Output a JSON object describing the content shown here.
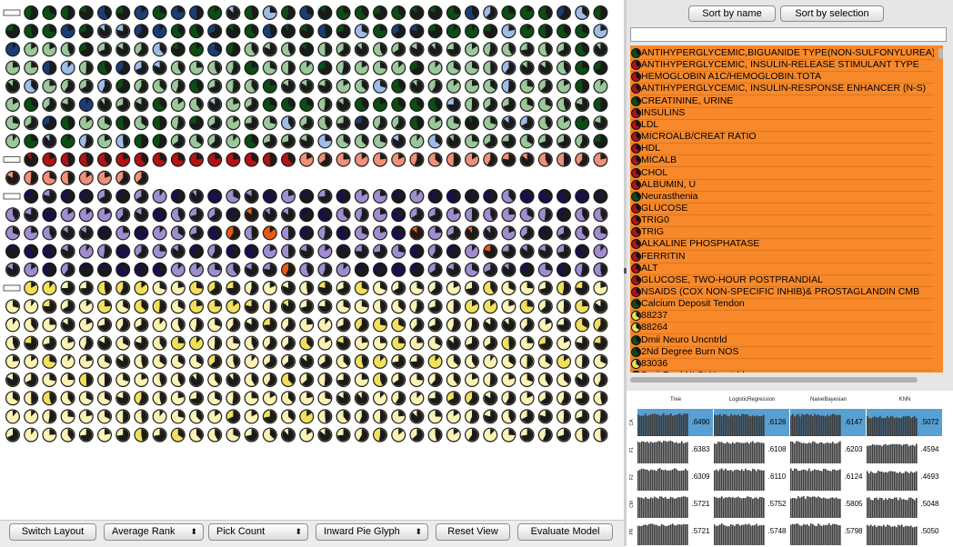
{
  "colors": {
    "green_dark": "#0c4d14",
    "green_light": "#9bc79a",
    "blue_dark": "#1b3d75",
    "blue_light": "#9fbce6",
    "red_dark": "#b01414",
    "red_light": "#ef9079",
    "purple_dark": "#1c0e4b",
    "purple_light": "#9f8dcf",
    "orange": "#e85a10",
    "yellow_dark": "#f1e05c",
    "yellow_light": "#fbf2b5",
    "list_bg": "#f7892b",
    "highlight": "#58a0d1"
  },
  "groups": [
    {
      "palette": "green",
      "has_label": true,
      "label": "",
      "rows": 8,
      "last_row_count": 33
    },
    {
      "palette": "red",
      "has_label": true,
      "label": "",
      "rows": 2,
      "last_row_count": 8
    },
    {
      "palette": "purple",
      "has_label": true,
      "label": "",
      "rows": 5,
      "last_row_count": 33
    },
    {
      "palette": "yellow",
      "has_label": true,
      "label": "",
      "rows": 9,
      "last_row_count": 33
    }
  ],
  "toolbar": {
    "switch_layout": "Switch Layout",
    "rank_select": "Average Rank",
    "count_select": "Pick Count",
    "glyph_select": "Inward Pie Glyph",
    "reset_view": "Reset View",
    "evaluate_model": "Evaluate Model"
  },
  "right_panel": {
    "sort_by_name": "Sort by name",
    "sort_by_selection": "Sort by selection",
    "filter_value": ""
  },
  "list_items": [
    {
      "label": "ANTIHYPERGLYCEMIC,BIGUANIDE TYPE(NON-SULFONYLUREA)",
      "icon": "green"
    },
    {
      "label": "ANTIHYPERGLYCEMIC, INSULIN-RELEASE STIMULANT TYPE",
      "icon": "red"
    },
    {
      "label": "HEMOGLOBIN A1C/HEMOGLOBIN.TOTA",
      "icon": "red"
    },
    {
      "label": "ANTIHYPERGLYCEMIC, INSULIN-RESPONSE ENHANCER (N-S)",
      "icon": "red"
    },
    {
      "label": "CREATININE, URINE",
      "icon": "green"
    },
    {
      "label": "INSULINS",
      "icon": "red"
    },
    {
      "label": "LDL",
      "icon": "red"
    },
    {
      "label": "MICROALB/CREAT RATIO",
      "icon": "red"
    },
    {
      "label": "HDL",
      "icon": "red"
    },
    {
      "label": "MICALB",
      "icon": "red"
    },
    {
      "label": "CHOL",
      "icon": "red"
    },
    {
      "label": "ALBUMIN, U",
      "icon": "red"
    },
    {
      "label": "Neurasthenia",
      "icon": "green"
    },
    {
      "label": "GLUCOSE",
      "icon": "red"
    },
    {
      "label": "TRIG0",
      "icon": "red"
    },
    {
      "label": "TRIG",
      "icon": "red"
    },
    {
      "label": "ALKALINE PHOSPHATASE",
      "icon": "red"
    },
    {
      "label": "FERRITIN",
      "icon": "red"
    },
    {
      "label": "ALT",
      "icon": "red"
    },
    {
      "label": "GLUCOSE, TWO-HOUR POSTPRANDIAL",
      "icon": "red"
    },
    {
      "label": "NSAIDS (COX NON-SPECIFIC INHIB)& PROSTAGLANDIN CMB",
      "icon": "red"
    },
    {
      "label": "Calcium Deposit Tendon",
      "icon": "green"
    },
    {
      "label": "88237",
      "icon": "yellow"
    },
    {
      "label": "88264",
      "icon": "yellow"
    },
    {
      "label": "Dmii Neuro Uncntrld",
      "icon": "green"
    },
    {
      "label": "2Nd Degree Burn NOS",
      "icon": "green"
    },
    {
      "label": "83036",
      "icon": "yellow"
    },
    {
      "label": "Dmii Renl Nt St Uncntrld",
      "icon": "green"
    }
  ],
  "matrix": {
    "columns": [
      "Tree",
      "LogisticRegression",
      "NaiveBayesian",
      "KNN"
    ],
    "rows": [
      {
        "label": "CA",
        "values": [
          ".6490",
          ".6126",
          ".6147",
          ".5072"
        ],
        "highlight": true
      },
      {
        "label": "F1",
        "values": [
          ".6383",
          ".6108",
          ".6203",
          ".4594"
        ],
        "highlight": false
      },
      {
        "label": "F2",
        "values": [
          ".6309",
          ".6110",
          ".6124",
          ".4693"
        ],
        "highlight": false
      },
      {
        "label": "CM",
        "values": [
          ".5721",
          ".5752",
          ".5805",
          ".5048"
        ],
        "highlight": false
      },
      {
        "label": "PR",
        "values": [
          ".5721",
          ".5748",
          ".5798",
          ".5050"
        ],
        "highlight": false
      }
    ]
  }
}
